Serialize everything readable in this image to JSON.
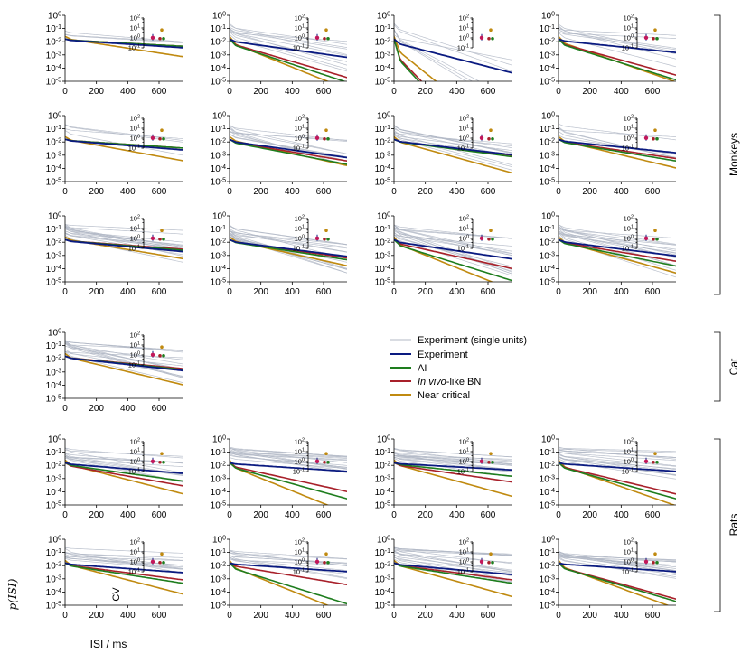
{
  "chart_data": {
    "type": "line",
    "xlabel": "ISI / ms",
    "ylabel": "p(ISI)",
    "inset_ylabel": "CV",
    "x_ticks": [
      0,
      200,
      400,
      600
    ],
    "x_range": [
      0,
      750
    ],
    "y_ticks": [
      "10^0",
      "10^-1",
      "10^-2",
      "10^-3",
      "10^-4",
      "10^-5"
    ],
    "y_range_log10": [
      -5,
      0
    ],
    "inset_y_ticks": [
      "10^2",
      "10^1",
      "10^0",
      "10^-1"
    ],
    "groups": [
      {
        "name": "Monkeys",
        "rows": [
          0,
          1,
          2
        ]
      },
      {
        "name": "Cat",
        "rows": [
          3
        ]
      },
      {
        "name": "Rats",
        "rows": [
          4,
          5
        ]
      }
    ],
    "legend": [
      {
        "label": "Experiment (single units)",
        "color": "#b3b9c6"
      },
      {
        "label": "Experiment",
        "color": "#0a1a80"
      },
      {
        "label": "AI",
        "color": "#1e7d1e"
      },
      {
        "label": "In vivo-like BN",
        "color": "#a8202a",
        "italic_part": "In vivo",
        "suffix": "-like BN"
      },
      {
        "label": "Near critical",
        "color": "#c08a10"
      }
    ],
    "panels": [
      {
        "row": 0,
        "col": 0,
        "decay": {
          "exp": 0.0018,
          "ai": 0.0015,
          "bn": 0.0015,
          "nc": 0.0042
        },
        "n_units": 3
      },
      {
        "row": 0,
        "col": 1,
        "decay": {
          "exp": 0.0038,
          "ai": 0.009,
          "bn": 0.008,
          "nc": 0.011
        },
        "n_units": 10
      },
      {
        "row": 0,
        "col": 2,
        "decay": {
          "exp": 0.007,
          "ai": 0.03,
          "bn": 0.028,
          "nc": 0.022
        },
        "n_units": 6
      },
      {
        "row": 0,
        "col": 3,
        "decay": {
          "exp": 0.0028,
          "ai": 0.0085,
          "bn": 0.0075,
          "nc": 0.0095
        },
        "n_units": 8
      },
      {
        "row": 1,
        "col": 0,
        "decay": {
          "exp": 0.0022,
          "ai": 0.0018,
          "bn": 0.0018,
          "nc": 0.005
        },
        "n_units": 4
      },
      {
        "row": 1,
        "col": 1,
        "decay": {
          "exp": 0.0038,
          "ai": 0.0052,
          "bn": 0.0045,
          "nc": 0.006
        },
        "n_units": 10
      },
      {
        "row": 1,
        "col": 2,
        "decay": {
          "exp": 0.0032,
          "ai": 0.0036,
          "bn": 0.0033,
          "nc": 0.0075
        },
        "n_units": 12
      },
      {
        "row": 1,
        "col": 3,
        "decay": {
          "exp": 0.0028,
          "ai": 0.0045,
          "bn": 0.004,
          "nc": 0.0065
        },
        "n_units": 6
      },
      {
        "row": 2,
        "col": 0,
        "decay": {
          "exp": 0.0025,
          "ai": 0.0022,
          "bn": 0.002,
          "nc": 0.0045
        },
        "n_units": 16
      },
      {
        "row": 2,
        "col": 1,
        "decay": {
          "exp": 0.0035,
          "ai": 0.0042,
          "bn": 0.0038,
          "nc": 0.006
        },
        "n_units": 16
      },
      {
        "row": 2,
        "col": 2,
        "decay": {
          "exp": 0.004,
          "ai": 0.0085,
          "bn": 0.006,
          "nc": 0.011
        },
        "n_units": 16
      },
      {
        "row": 2,
        "col": 3,
        "decay": {
          "exp": 0.0034,
          "ai": 0.0055,
          "bn": 0.0045,
          "nc": 0.0075
        },
        "n_units": 16
      },
      {
        "row": 3,
        "col": 0,
        "decay": {
          "exp": 0.003,
          "ai": 0.0028,
          "bn": 0.0026,
          "nc": 0.0065
        },
        "n_units": 16
      },
      {
        "row": 4,
        "col": 0,
        "decay": {
          "exp": 0.0022,
          "ai": 0.0038,
          "bn": 0.0048,
          "nc": 0.007
        },
        "n_units": 12
      },
      {
        "row": 4,
        "col": 1,
        "decay": {
          "exp": 0.0018,
          "ai": 0.0075,
          "bn": 0.006,
          "nc": 0.011
        },
        "n_units": 16
      },
      {
        "row": 4,
        "col": 2,
        "decay": {
          "exp": 0.0015,
          "ai": 0.0028,
          "bn": 0.004,
          "nc": 0.0075
        },
        "n_units": 16
      },
      {
        "row": 4,
        "col": 3,
        "decay": {
          "exp": 0.0018,
          "ai": 0.0075,
          "bn": 0.0065,
          "nc": 0.0095
        },
        "n_units": 16
      },
      {
        "row": 5,
        "col": 0,
        "decay": {
          "exp": 0.002,
          "ai": 0.0042,
          "bn": 0.0035,
          "nc": 0.007
        },
        "n_units": 12
      },
      {
        "row": 5,
        "col": 1,
        "decay": {
          "exp": 0.0018,
          "ai": 0.0085,
          "bn": 0.0045,
          "nc": 0.011
        },
        "n_units": 12
      },
      {
        "row": 5,
        "col": 2,
        "decay": {
          "exp": 0.0024,
          "ai": 0.0042,
          "bn": 0.0035,
          "nc": 0.0075
        },
        "n_units": 16
      },
      {
        "row": 5,
        "col": 3,
        "decay": {
          "exp": 0.0018,
          "ai": 0.008,
          "bn": 0.0075,
          "nc": 0.01
        },
        "n_units": 16
      }
    ]
  }
}
